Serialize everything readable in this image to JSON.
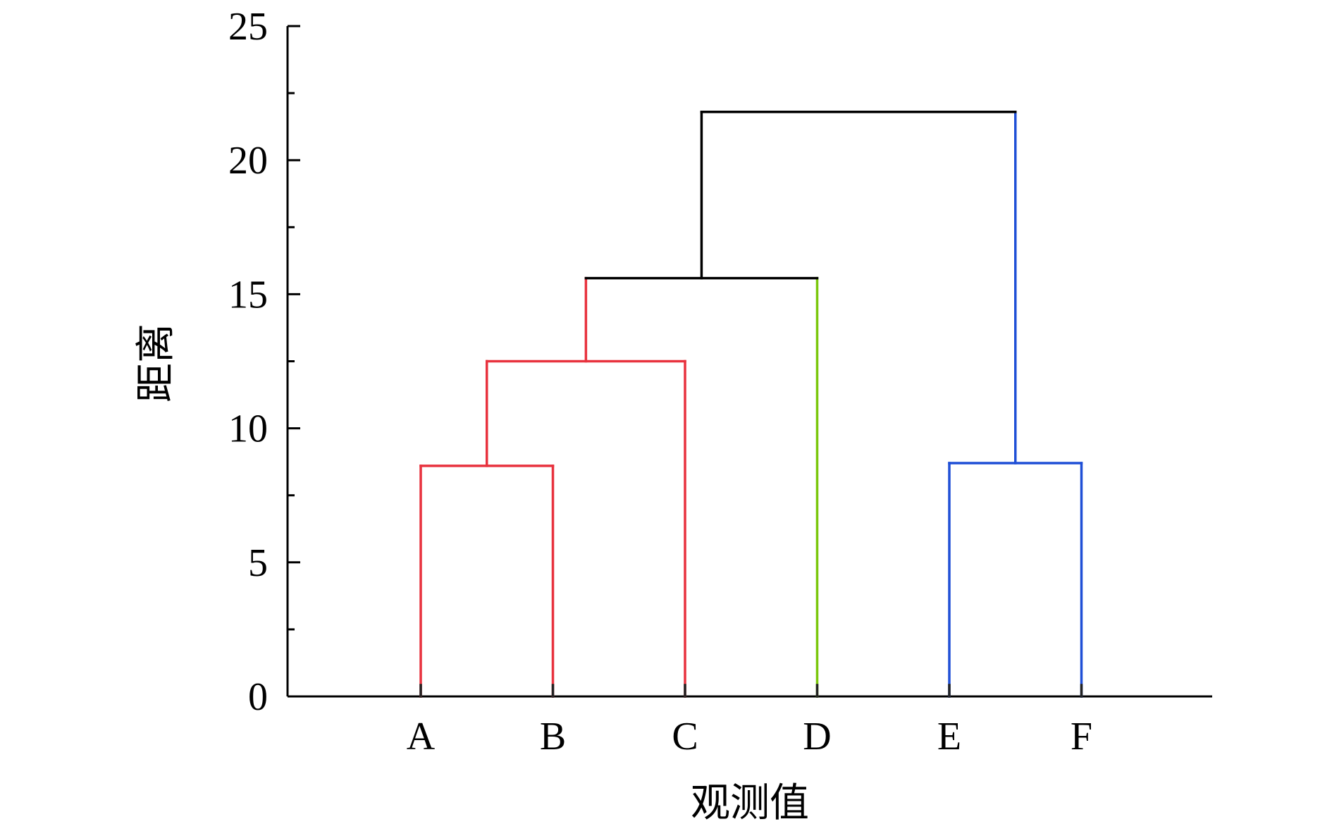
{
  "chart_data": {
    "type": "dendrogram",
    "title": "",
    "xlabel": "观测值",
    "ylabel": "距离",
    "ylim": [
      0,
      25
    ],
    "yticks": [
      0,
      5,
      10,
      15,
      20,
      25
    ],
    "grid": false,
    "leaves": [
      "A",
      "B",
      "C",
      "D",
      "E",
      "F"
    ],
    "merges": [
      {
        "left": "A",
        "right": "B",
        "height": 8.6,
        "color": "#e8323e"
      },
      {
        "left": "AB",
        "right": "C",
        "height": 12.5,
        "color": "#e8323e"
      },
      {
        "left": "E",
        "right": "F",
        "height": 8.7,
        "color": "#1f4fd6"
      },
      {
        "left": "ABC",
        "right": "D",
        "height": 15.6,
        "color": "#000000"
      },
      {
        "left": "ABCD",
        "right": "EF",
        "height": 21.8,
        "color": "#000000"
      }
    ],
    "leaf_colors": {
      "A": "#e8323e",
      "B": "#e8323e",
      "C": "#e8323e",
      "D": "#7ac70c",
      "E": "#1f4fd6",
      "F": "#1f4fd6"
    },
    "axis_color": "#000000"
  }
}
